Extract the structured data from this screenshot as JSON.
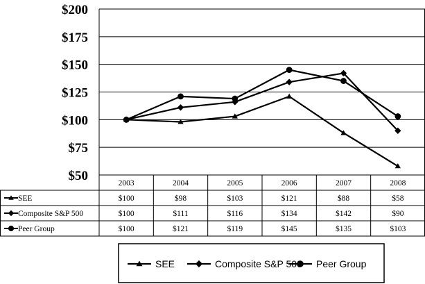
{
  "chart_data": {
    "type": "line",
    "title": "",
    "xlabel": "",
    "ylabel": "",
    "x": [
      "2003",
      "2004",
      "2005",
      "2006",
      "2007",
      "2008"
    ],
    "ylim": [
      50,
      200
    ],
    "yticks": [
      50,
      75,
      100,
      125,
      150,
      175,
      200
    ],
    "ytick_labels": [
      "$50",
      "$75",
      "$100",
      "$125",
      "$150",
      "$175",
      "$200"
    ],
    "grid": true,
    "legend_position": "bottom",
    "line_color": "#000000",
    "series": [
      {
        "name": "SEE",
        "marker": "triangle",
        "values": [
          100,
          98,
          103,
          121,
          88,
          58
        ],
        "labels": [
          "$100",
          "$98",
          "$103",
          "$121",
          "$88",
          "$58"
        ]
      },
      {
        "name": "Composite S&P 500",
        "marker": "diamond",
        "values": [
          100,
          111,
          116,
          134,
          142,
          90
        ],
        "labels": [
          "$100",
          "$111",
          "$116",
          "$134",
          "$142",
          "$90"
        ]
      },
      {
        "name": "Peer Group",
        "marker": "circle",
        "values": [
          100,
          121,
          119,
          145,
          135,
          103
        ],
        "labels": [
          "$100",
          "$121",
          "$119",
          "$145",
          "$135",
          "$103"
        ]
      }
    ]
  }
}
